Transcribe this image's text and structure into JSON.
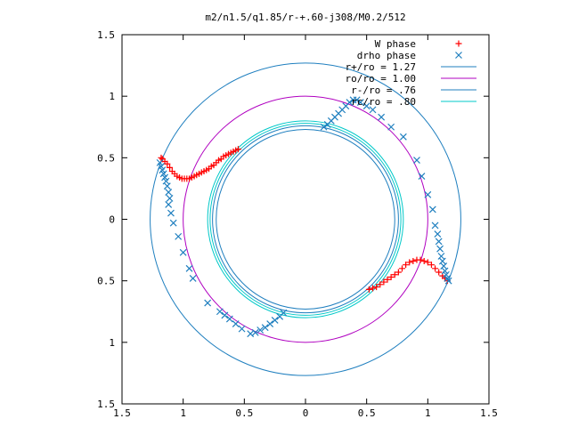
{
  "chart_data": {
    "type": "scatter",
    "title": "m2/n1.5/q1.85/r-+.60-j308/M0.2/512",
    "xlim": [
      -1.5,
      1.5
    ],
    "ylim": [
      -1.5,
      1.5
    ],
    "x_ticks": [
      -1.5,
      -1,
      -0.5,
      0,
      0.5,
      1,
      1.5
    ],
    "y_ticks": [
      -1.5,
      -1,
      -0.5,
      0,
      0.5,
      1,
      1.5
    ],
    "x_tick_labels": [
      "1.5",
      "1",
      "0.5",
      "0",
      "0.5",
      "1",
      "1.5"
    ],
    "y_tick_labels": [
      "1.5",
      "1",
      "0.5",
      "0",
      "0.5",
      "1",
      "1.5"
    ],
    "grid": false,
    "legend_position": "top-right",
    "circles": [
      {
        "label": "r+/ro = 1.27",
        "radius": 1.27,
        "color": "#1f7fbf"
      },
      {
        "label": "ro/ro = 1.00",
        "radius": 1.0,
        "color": "#b000c0"
      },
      {
        "label": "r-/ro = .76",
        "radius": 0.76,
        "color": "#1f7fbf"
      },
      {
        "label": "rc/ro = .80",
        "radius": 0.8,
        "color": "#00c8c8"
      }
    ],
    "circle_pairs": [
      {
        "radius": 0.78,
        "color": "#00c8c8"
      },
      {
        "radius": 0.73,
        "color": "#1f7fbf"
      }
    ],
    "series": [
      {
        "name": "W phase",
        "marker": "plus",
        "color": "#ff0000",
        "x": [
          -1.18,
          -1.17,
          -1.15,
          -1.13,
          -1.11,
          -1.09,
          -1.07,
          -1.05,
          -1.03,
          -1.01,
          -0.99,
          -0.97,
          -0.95,
          -0.93,
          -0.91,
          -0.89,
          -0.87,
          -0.85,
          -0.83,
          -0.81,
          -0.79,
          -0.77,
          -0.75,
          -0.73,
          -0.71,
          -0.69,
          -0.67,
          -0.65,
          -0.63,
          -0.61,
          -0.59,
          -0.57,
          -0.55,
          0.52,
          0.55,
          0.58,
          0.61,
          0.64,
          0.67,
          0.7,
          0.73,
          0.76,
          0.79,
          0.82,
          0.85,
          0.88,
          0.91,
          0.94,
          0.97,
          1.0,
          1.03,
          1.06,
          1.09,
          1.12,
          1.14,
          1.16
        ],
        "y": [
          0.5,
          0.49,
          0.47,
          0.45,
          0.42,
          0.39,
          0.37,
          0.35,
          0.34,
          0.33,
          0.33,
          0.33,
          0.33,
          0.34,
          0.35,
          0.36,
          0.37,
          0.38,
          0.39,
          0.4,
          0.41,
          0.43,
          0.44,
          0.46,
          0.48,
          0.49,
          0.51,
          0.52,
          0.53,
          0.54,
          0.55,
          0.56,
          0.57,
          -0.57,
          -0.56,
          -0.55,
          -0.53,
          -0.51,
          -0.49,
          -0.47,
          -0.45,
          -0.43,
          -0.4,
          -0.37,
          -0.35,
          -0.34,
          -0.33,
          -0.33,
          -0.34,
          -0.35,
          -0.37,
          -0.4,
          -0.43,
          -0.46,
          -0.48,
          -0.5
        ]
      },
      {
        "name": "drho phase",
        "marker": "cross",
        "color": "#1f7fbf",
        "x": [
          -1.19,
          -1.18,
          -1.17,
          -1.16,
          -1.15,
          -1.14,
          -1.13,
          -1.12,
          -1.11,
          0.15,
          0.18,
          0.21,
          0.24,
          0.27,
          0.3,
          0.33,
          0.36,
          0.39,
          0.42,
          0.45,
          0.5,
          0.55,
          0.62,
          0.7,
          0.8,
          0.91,
          0.95,
          1.0,
          1.04,
          1.06,
          1.08,
          1.09,
          1.1,
          1.11,
          1.12,
          1.13,
          1.14,
          1.15,
          1.16,
          1.17,
          -0.45,
          -0.41,
          -0.37,
          -0.33,
          -0.29,
          -0.25,
          -0.21,
          -0.18,
          -0.52,
          -0.57,
          -0.62,
          -0.66,
          -0.7,
          -0.8,
          -0.92,
          -0.95,
          -1.0,
          -1.04,
          -1.08,
          -1.1,
          -1.12
        ],
        "y": [
          0.46,
          0.43,
          0.4,
          0.37,
          0.34,
          0.31,
          0.27,
          0.22,
          0.17,
          0.75,
          0.77,
          0.8,
          0.83,
          0.86,
          0.89,
          0.92,
          0.95,
          0.97,
          0.97,
          0.95,
          0.92,
          0.89,
          0.83,
          0.75,
          0.67,
          0.48,
          0.35,
          0.2,
          0.08,
          -0.05,
          -0.12,
          -0.18,
          -0.24,
          -0.3,
          -0.34,
          -0.38,
          -0.42,
          -0.45,
          -0.48,
          -0.5,
          -0.93,
          -0.92,
          -0.9,
          -0.88,
          -0.85,
          -0.82,
          -0.79,
          -0.76,
          -0.89,
          -0.85,
          -0.81,
          -0.78,
          -0.75,
          -0.68,
          -0.48,
          -0.4,
          -0.27,
          -0.14,
          -0.03,
          0.05,
          0.12
        ]
      }
    ]
  }
}
